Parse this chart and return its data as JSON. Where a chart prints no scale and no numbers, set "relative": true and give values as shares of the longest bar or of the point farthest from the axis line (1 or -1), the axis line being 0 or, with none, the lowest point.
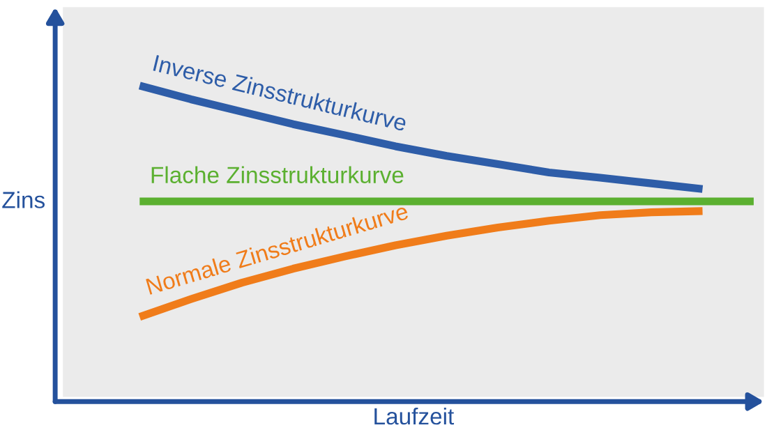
{
  "chart_data": {
    "type": "line",
    "relative": true,
    "xlabel": "Laufzeit",
    "ylabel": "Zins",
    "categories": [
      null,
      null,
      null,
      null,
      null,
      null,
      null,
      null,
      null,
      null,
      null,
      null,
      null
    ],
    "series": [
      {
        "name": "Inverse Zinsstrukturkurve",
        "color": "#2e5da8",
        "values": [
          1.0,
          0.956,
          0.916,
          0.876,
          0.841,
          0.805,
          0.774,
          0.748,
          0.721,
          0.704,
          0.686,
          0.668,
          null
        ]
      },
      {
        "name": "Flache Zinsstrukturkurve",
        "color": "#5bb030",
        "values": [
          0.628,
          0.628,
          0.628,
          0.628,
          0.628,
          0.628,
          0.628,
          0.628,
          0.628,
          0.628,
          0.628,
          0.628,
          0.628
        ]
      },
      {
        "name": "Normale Zinsstrukturkurve",
        "color": "#f07c1a",
        "values": [
          0.257,
          0.314,
          0.367,
          0.412,
          0.451,
          0.487,
          0.518,
          0.544,
          0.566,
          0.584,
          0.593,
          0.597,
          null
        ]
      }
    ],
    "grid": false,
    "legend": false,
    "marker": "none",
    "line_style": "solid"
  }
}
